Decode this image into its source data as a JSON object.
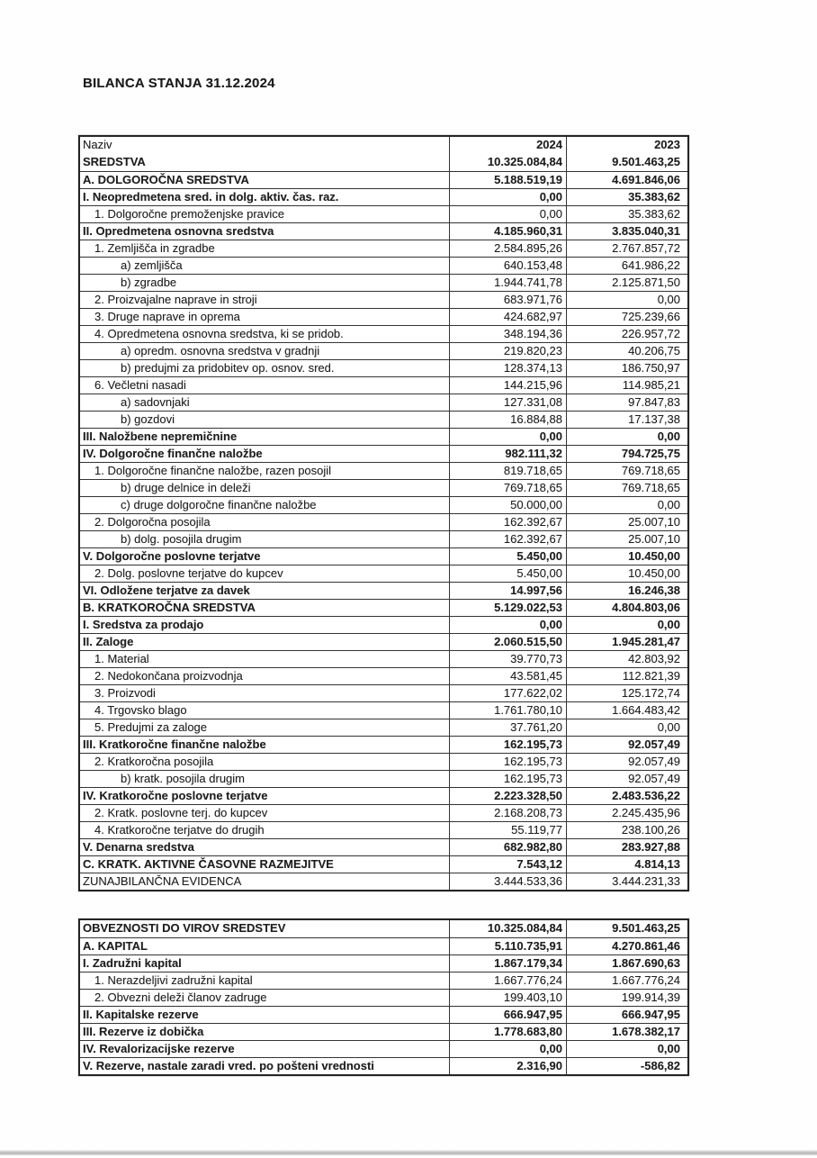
{
  "page": {
    "title": "BILANCA STANJA 31.12.2024"
  },
  "table1": {
    "header": {
      "label": "Naziv",
      "col2024": "2024",
      "col2023": "2023"
    },
    "rows": [
      {
        "label": "SREDSTVA",
        "y2024": "10.325.084,84",
        "y2023": "9.501.463,25",
        "style": "bold"
      },
      {
        "label": "A. DOLGOROČNA SREDSTVA",
        "y2024": "5.188.519,19",
        "y2023": "4.691.846,06",
        "style": "bold"
      },
      {
        "label": "I. Neopredmetena sred. in dolg. aktiv. čas. raz.",
        "y2024": "0,00",
        "y2023": "35.383,62",
        "style": "bold"
      },
      {
        "label": "1. Dolgoročne premoženjske pravice",
        "y2024": "0,00",
        "y2023": "35.383,62",
        "style": "l1"
      },
      {
        "label": "II. Opredmetena osnovna sredstva",
        "y2024": "4.185.960,31",
        "y2023": "3.835.040,31",
        "style": "bold"
      },
      {
        "label": "1. Zemljišča in zgradbe",
        "y2024": "2.584.895,26",
        "y2023": "2.767.857,72",
        "style": "l1"
      },
      {
        "label": "a) zemljišča",
        "y2024": "640.153,48",
        "y2023": "641.986,22",
        "style": "l2"
      },
      {
        "label": "b) zgradbe",
        "y2024": "1.944.741,78",
        "y2023": "2.125.871,50",
        "style": "l2"
      },
      {
        "label": "2. Proizvajalne naprave in stroji",
        "y2024": "683.971,76",
        "y2023": "0,00",
        "style": "l1"
      },
      {
        "label": "3. Druge naprave in oprema",
        "y2024": "424.682,97",
        "y2023": "725.239,66",
        "style": "l1"
      },
      {
        "label": "4. Opredmetena osnovna sredstva, ki se pridob.",
        "y2024": "348.194,36",
        "y2023": "226.957,72",
        "style": "l1"
      },
      {
        "label": "a) opredm. osnovna sredstva v gradnji",
        "y2024": "219.820,23",
        "y2023": "40.206,75",
        "style": "l2"
      },
      {
        "label": "b) predujmi za pridobitev op. osnov. sred.",
        "y2024": "128.374,13",
        "y2023": "186.750,97",
        "style": "l2"
      },
      {
        "label": "6. Večletni nasadi",
        "y2024": "144.215,96",
        "y2023": "114.985,21",
        "style": "l1"
      },
      {
        "label": "a) sadovnjaki",
        "y2024": "127.331,08",
        "y2023": "97.847,83",
        "style": "l2"
      },
      {
        "label": "b) gozdovi",
        "y2024": "16.884,88",
        "y2023": "17.137,38",
        "style": "l2"
      },
      {
        "label": "III. Naložbene nepremičnine",
        "y2024": "0,00",
        "y2023": "0,00",
        "style": "bold"
      },
      {
        "label": "IV. Dolgoročne finančne naložbe",
        "y2024": "982.111,32",
        "y2023": "794.725,75",
        "style": "bold"
      },
      {
        "label": "1. Dolgoročne finančne naložbe, razen posojil",
        "y2024": "819.718,65",
        "y2023": "769.718,65",
        "style": "l1"
      },
      {
        "label": "b) druge delnice in deleži",
        "y2024": "769.718,65",
        "y2023": "769.718,65",
        "style": "l2"
      },
      {
        "label": "c) druge dolgoročne finančne naložbe",
        "y2024": "50.000,00",
        "y2023": "0,00",
        "style": "l2"
      },
      {
        "label": "2. Dolgoročna posojila",
        "y2024": "162.392,67",
        "y2023": "25.007,10",
        "style": "l1"
      },
      {
        "label": "b) dolg. posojila drugim",
        "y2024": "162.392,67",
        "y2023": "25.007,10",
        "style": "l2"
      },
      {
        "label": "V. Dolgoročne poslovne terjatve",
        "y2024": "5.450,00",
        "y2023": "10.450,00",
        "style": "bold"
      },
      {
        "label": "2. Dolg. poslovne terjatve do kupcev",
        "y2024": "5.450,00",
        "y2023": "10.450,00",
        "style": "l1"
      },
      {
        "label": "VI. Odložene terjatve za davek",
        "y2024": "14.997,56",
        "y2023": "16.246,38",
        "style": "bold"
      },
      {
        "label": "B. KRATKOROČNA SREDSTVA",
        "y2024": "5.129.022,53",
        "y2023": "4.804.803,06",
        "style": "bold"
      },
      {
        "label": "I. Sredstva za prodajo",
        "y2024": "0,00",
        "y2023": "0,00",
        "style": "bold"
      },
      {
        "label": "II. Zaloge",
        "y2024": "2.060.515,50",
        "y2023": "1.945.281,47",
        "style": "bold"
      },
      {
        "label": "1. Material",
        "y2024": "39.770,73",
        "y2023": "42.803,92",
        "style": "l1"
      },
      {
        "label": "2. Nedokončana proizvodnja",
        "y2024": "43.581,45",
        "y2023": "112.821,39",
        "style": "l1"
      },
      {
        "label": "3. Proizvodi",
        "y2024": "177.622,02",
        "y2023": "125.172,74",
        "style": "l1"
      },
      {
        "label": "4. Trgovsko blago",
        "y2024": "1.761.780,10",
        "y2023": "1.664.483,42",
        "style": "l1"
      },
      {
        "label": "5. Predujmi za zaloge",
        "y2024": "37.761,20",
        "y2023": "0,00",
        "style": "l1"
      },
      {
        "label": "III. Kratkoročne finančne naložbe",
        "y2024": "162.195,73",
        "y2023": "92.057,49",
        "style": "bold"
      },
      {
        "label": "2. Kratkoročna posojila",
        "y2024": "162.195,73",
        "y2023": "92.057,49",
        "style": "l1"
      },
      {
        "label": "b) kratk. posojila drugim",
        "y2024": "162.195,73",
        "y2023": "92.057,49",
        "style": "l2"
      },
      {
        "label": "IV. Kratkoročne poslovne terjatve",
        "y2024": "2.223.328,50",
        "y2023": "2.483.536,22",
        "style": "bold"
      },
      {
        "label": "2. Kratk. poslovne terj. do kupcev",
        "y2024": "2.168.208,73",
        "y2023": "2.245.435,96",
        "style": "l1"
      },
      {
        "label": "4. Kratkoročne terjatve do drugih",
        "y2024": "55.119,77",
        "y2023": "238.100,26",
        "style": "l1"
      },
      {
        "label": "V. Denarna sredstva",
        "y2024": "682.982,80",
        "y2023": "283.927,88",
        "style": "bold"
      },
      {
        "label": "C. KRATK. AKTIVNE ČASOVNE RAZMEJITVE",
        "y2024": "7.543,12",
        "y2023": "4.814,13",
        "style": "bold"
      },
      {
        "label": "ZUNAJBILANČNA EVIDENCA",
        "y2024": "3.444.533,36",
        "y2023": "3.444.231,33",
        "style": "plain"
      }
    ]
  },
  "table2": {
    "rows": [
      {
        "label": "OBVEZNOSTI DO VIROV SREDSTEV",
        "y2024": "10.325.084,84",
        "y2023": "9.501.463,25",
        "style": "bold"
      },
      {
        "label": "A. KAPITAL",
        "y2024": "5.110.735,91",
        "y2023": "4.270.861,46",
        "style": "bold"
      },
      {
        "label": "I. Zadružni kapital",
        "y2024": "1.867.179,34",
        "y2023": "1.867.690,63",
        "style": "bold"
      },
      {
        "label": "1. Nerazdeljivi zadružni kapital",
        "y2024": "1.667.776,24",
        "y2023": "1.667.776,24",
        "style": "l1"
      },
      {
        "label": "2. Obvezni deleži članov zadruge",
        "y2024": "199.403,10",
        "y2023": "199.914,39",
        "style": "l1"
      },
      {
        "label": "II. Kapitalske rezerve",
        "y2024": "666.947,95",
        "y2023": "666.947,95",
        "style": "bold"
      },
      {
        "label": "III. Rezerve iz dobička",
        "y2024": "1.778.683,80",
        "y2023": "1.678.382,17",
        "style": "bold"
      },
      {
        "label": "IV. Revalorizacijske rezerve",
        "y2024": "0,00",
        "y2023": "0,00",
        "style": "bold"
      },
      {
        "label": "V. Rezerve, nastale zaradi vred. po pošteni vrednosti",
        "y2024": "2.316,90",
        "y2023": "-586,82",
        "style": "bold"
      }
    ]
  }
}
